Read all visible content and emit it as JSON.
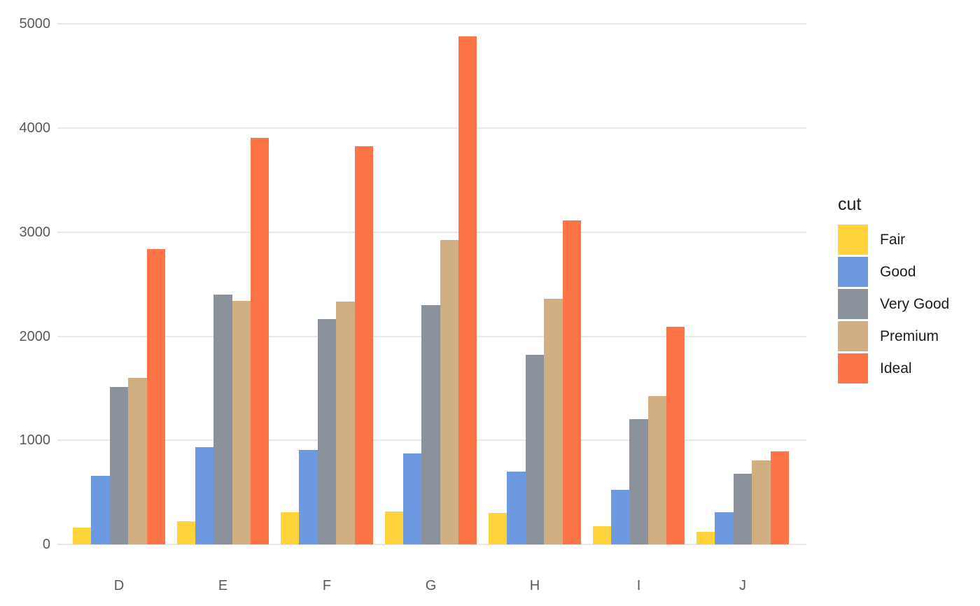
{
  "chart_data": {
    "type": "bar",
    "title": "",
    "xlabel": "",
    "ylabel": "",
    "legend_title": "cut",
    "legend_position": "right",
    "grid": true,
    "background_color": "#ffffff",
    "gridline_color": "#e8e8e8",
    "axis_text_color": "#5a5a5a",
    "legend_text_color": "#1d1d1d",
    "ylim": [
      0,
      5000
    ],
    "y_ticks": [
      0,
      1000,
      2000,
      3000,
      4000,
      5000
    ],
    "categories": [
      "D",
      "E",
      "F",
      "G",
      "H",
      "I",
      "J"
    ],
    "series": [
      {
        "name": "Fair",
        "color": "#FFD33A",
        "values": [
          163,
          224,
          312,
          314,
          303,
          175,
          119
        ]
      },
      {
        "name": "Good",
        "color": "#6D99E0",
        "values": [
          662,
          933,
          909,
          871,
          702,
          522,
          307
        ]
      },
      {
        "name": "Very Good",
        "color": "#8B929B",
        "values": [
          1513,
          2400,
          2164,
          2299,
          1824,
          1204,
          678
        ]
      },
      {
        "name": "Premium",
        "color": "#D2AF82",
        "values": [
          1603,
          2337,
          2331,
          2924,
          2360,
          1428,
          808
        ]
      },
      {
        "name": "Ideal",
        "color": "#FB7548",
        "values": [
          2834,
          3903,
          3826,
          4884,
          3115,
          2093,
          896
        ]
      }
    ]
  }
}
